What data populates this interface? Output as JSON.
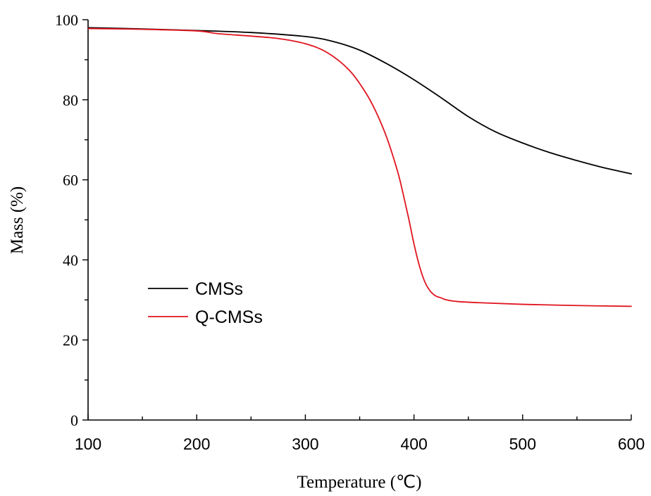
{
  "chart_data": {
    "type": "line",
    "title": "",
    "xlabel": "Temperature (℃)",
    "ylabel": "Mass (%)",
    "xlim": [
      100,
      600
    ],
    "ylim": [
      0,
      100
    ],
    "xticks": [
      100,
      200,
      300,
      400,
      500,
      600
    ],
    "yticks": [
      0,
      20,
      40,
      60,
      80,
      100
    ],
    "grid": false,
    "legend_position": "middle-left",
    "series": [
      {
        "name": "CMSs",
        "color": "#000000",
        "x": [
          100,
          150,
          200,
          250,
          300,
          325,
          350,
          375,
          400,
          425,
          450,
          475,
          500,
          525,
          550,
          575,
          600
        ],
        "y": [
          98.0,
          97.7,
          97.3,
          96.8,
          95.8,
          94.6,
          92.4,
          89.0,
          85.0,
          80.5,
          75.8,
          72.0,
          69.2,
          66.8,
          64.8,
          63.0,
          61.5
        ]
      },
      {
        "name": "Q-CMSs",
        "color": "#e0141e",
        "x": [
          100,
          150,
          200,
          220,
          250,
          275,
          300,
          320,
          340,
          355,
          365,
          375,
          385,
          390,
          395,
          400,
          405,
          410,
          415,
          420,
          425,
          430,
          440,
          460,
          500,
          550,
          600
        ],
        "y": [
          97.8,
          97.6,
          97.2,
          96.5,
          95.9,
          95.3,
          94.0,
          91.8,
          87.5,
          82.0,
          77.0,
          70.5,
          62.0,
          56.5,
          50.5,
          44.0,
          38.5,
          34.5,
          32.2,
          31.0,
          30.5,
          30.0,
          29.6,
          29.3,
          28.9,
          28.6,
          28.4
        ]
      }
    ]
  }
}
